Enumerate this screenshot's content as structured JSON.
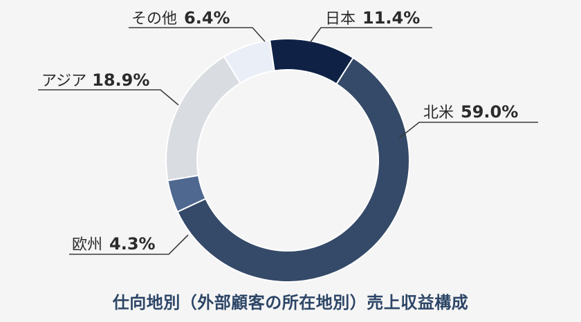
{
  "chart_data": {
    "type": "pie",
    "variant": "donut",
    "title": "仕向地別（外部顧客の所在地別）売上収益構成",
    "unit": "%",
    "slices": [
      {
        "name": "日本",
        "value": 11.4,
        "value_label": "11.4%",
        "color": "#0f2246"
      },
      {
        "name": "北米",
        "value": 59.0,
        "value_label": "59.0%",
        "color": "#354a68"
      },
      {
        "name": "欧州",
        "value": 4.3,
        "value_label": "4.3%",
        "color": "#4e6890"
      },
      {
        "name": "アジア",
        "value": 18.9,
        "value_label": "18.9%",
        "color": "#d9dde2"
      },
      {
        "name": "その他",
        "value": 6.4,
        "value_label": "6.4%",
        "color": "#eaeef6"
      }
    ]
  }
}
